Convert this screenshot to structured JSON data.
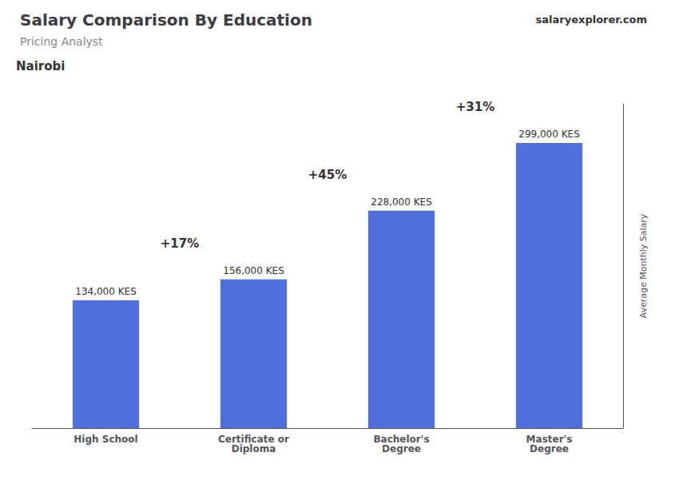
{
  "chart_data": {
    "type": "bar",
    "title": "Salary Comparison By Education",
    "subtitle": "Pricing Analyst",
    "city": "Nairobi",
    "brand": "salaryexplorer.com",
    "ylabel": "Average Monthly Salary",
    "categories": [
      "High School",
      "Certificate or\nDiploma",
      "Bachelor's\nDegree",
      "Master's\nDegree"
    ],
    "values": [
      134000,
      156000,
      228000,
      299000
    ],
    "value_labels": [
      "134,000 KES",
      "156,000 KES",
      "228,000 KES",
      "299,000 KES"
    ],
    "data_labels": true,
    "annotations": [
      "+17%",
      "+45%",
      "+31%"
    ],
    "ylim": [
      0,
      340000
    ],
    "grid": false,
    "tick_labels": "x"
  }
}
